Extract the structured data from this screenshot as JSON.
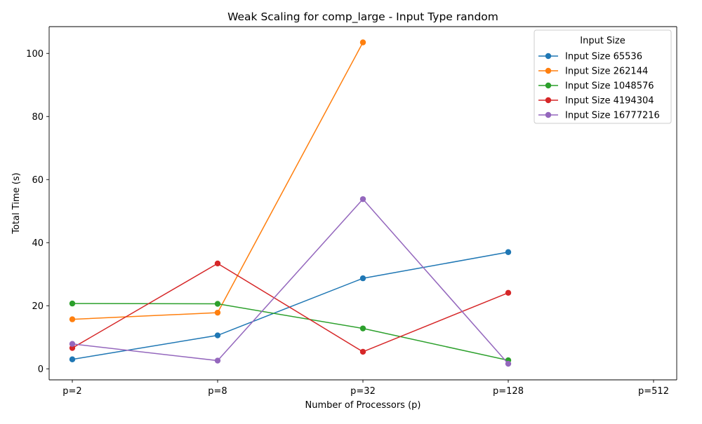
{
  "chart_data": {
    "type": "line",
    "title": "Weak Scaling for comp_large - Input Type random",
    "xlabel": "Number of Processors (p)",
    "ylabel": "Total Time (s)",
    "categories": [
      "p=2",
      "p=8",
      "p=32",
      "p=128",
      "p=512"
    ],
    "ylim": [
      -3.5,
      108.5
    ],
    "yticks": [
      0,
      20,
      40,
      60,
      80,
      100
    ],
    "grid": false,
    "legend": {
      "title": "Input Size",
      "placement": "top-right"
    },
    "series": [
      {
        "name": "Input Size 65536",
        "color": "#1f77b4",
        "values": [
          3.0,
          10.6,
          28.7,
          37.0,
          null
        ]
      },
      {
        "name": "Input Size 262144",
        "color": "#ff7f0e",
        "values": [
          15.7,
          17.8,
          103.5,
          null,
          null
        ]
      },
      {
        "name": "Input Size 1048576",
        "color": "#2ca02c",
        "values": [
          20.7,
          20.6,
          12.8,
          2.7,
          null
        ]
      },
      {
        "name": "Input Size 4194304",
        "color": "#d62728",
        "values": [
          6.6,
          33.4,
          5.4,
          24.1,
          null
        ]
      },
      {
        "name": "Input Size 16777216",
        "color": "#9467bd",
        "values": [
          7.9,
          2.6,
          53.8,
          1.6,
          null
        ]
      }
    ]
  }
}
